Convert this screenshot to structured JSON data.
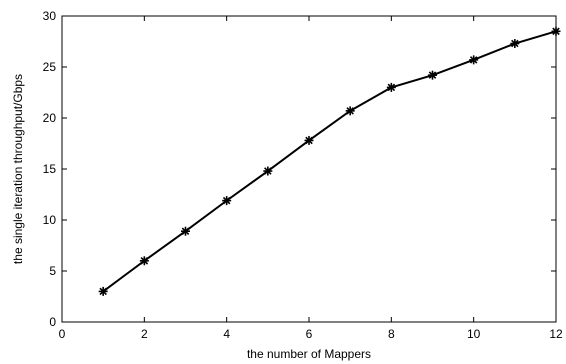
{
  "chart_data": {
    "type": "line",
    "title": "",
    "xlabel": "the number of Mappers",
    "ylabel": "the single iteration throughput/Gbps",
    "xlim": [
      0,
      12
    ],
    "ylim": [
      0,
      30
    ],
    "xticks": [
      0,
      2,
      4,
      6,
      8,
      10,
      12
    ],
    "yticks": [
      0,
      5,
      10,
      15,
      20,
      25,
      30
    ],
    "grid": false,
    "series": [
      {
        "marker": "star",
        "color": "#000000",
        "x": [
          1,
          2,
          3,
          4,
          5,
          6,
          7,
          8,
          9,
          10,
          11,
          12
        ],
        "y": [
          3.0,
          6.0,
          8.9,
          11.9,
          14.8,
          17.8,
          20.7,
          23.0,
          24.2,
          25.7,
          27.3,
          28.5
        ]
      }
    ]
  }
}
